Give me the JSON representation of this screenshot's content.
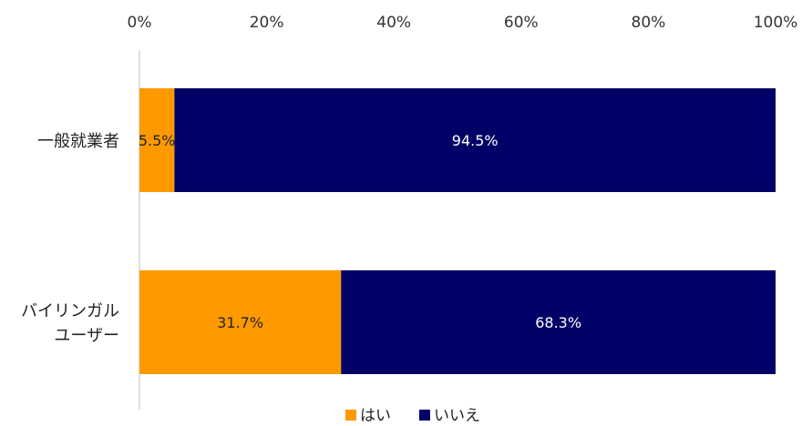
{
  "chart_data": {
    "type": "bar",
    "orientation": "horizontal",
    "stacked": true,
    "title": "",
    "xlabel": "",
    "ylabel": "",
    "xlim": [
      0,
      100
    ],
    "x_ticks": [
      "0%",
      "20%",
      "40%",
      "60%",
      "80%",
      "100%"
    ],
    "x_tick_values": [
      0,
      20,
      40,
      60,
      80,
      100
    ],
    "grid": false,
    "legend_position": "bottom",
    "categories": [
      {
        "lines": [
          "一般就業者"
        ]
      },
      {
        "lines": [
          "バイリンガル",
          "ユーザー"
        ]
      }
    ],
    "series": [
      {
        "name": "はい",
        "color": "#FF9900",
        "values": [
          5.5,
          31.7
        ],
        "labels": [
          "5.5%",
          "31.7%"
        ],
        "label_color": "#222222"
      },
      {
        "name": "いいえ",
        "color": "#000066",
        "values": [
          94.5,
          68.3
        ],
        "labels": [
          "94.5%",
          "68.3%"
        ],
        "label_color": "#ffffff"
      }
    ]
  }
}
